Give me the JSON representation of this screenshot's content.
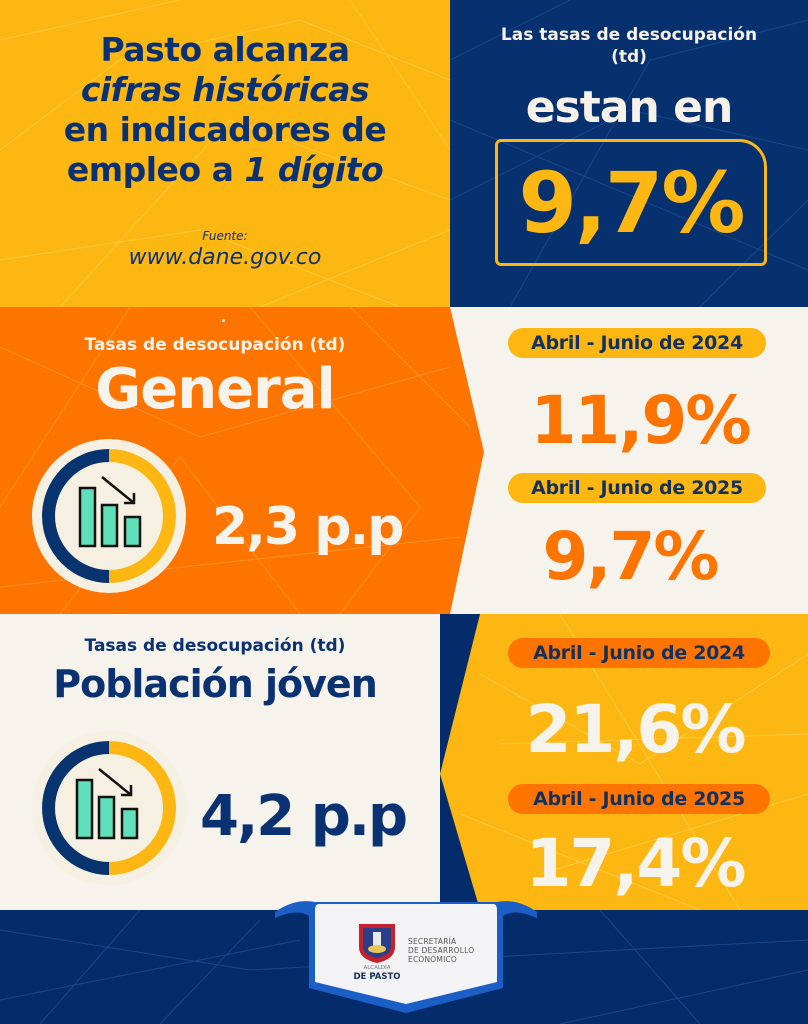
{
  "headline": {
    "line1": "Pasto alcanza",
    "line2": "cifras históricas",
    "line3": "en indicadores de",
    "line4_prefix": "empleo a ",
    "line4_emph": "1 dígito"
  },
  "source": {
    "label": "Fuente:",
    "url": "www.dane.gov.co"
  },
  "summary": {
    "subtitle_line1": "Las tasas de desocupación",
    "subtitle_line2": "(td)",
    "lead": "estan en",
    "value": "9,7%"
  },
  "general": {
    "subtitle": "Tasas de desocupación (td)",
    "title": "General",
    "reduction": "2,3 p.p",
    "periods": [
      {
        "label": "Abril - Junio de 2024",
        "rate": "11,9%"
      },
      {
        "label": "Abril - Junio de 2025",
        "rate": "9,7%"
      }
    ]
  },
  "youth": {
    "subtitle": "Tasas de desocupación (td)",
    "title": "Población jóven",
    "reduction": "4,2 p.p",
    "periods": [
      {
        "label": "Abril - Junio de 2024",
        "rate": "21,6%"
      },
      {
        "label": "Abril - Junio de 2025",
        "rate": "17,4%"
      }
    ]
  },
  "footer": {
    "org_line1": "SECRETARÍA",
    "org_line2": "DE DESARROLLO",
    "org_line3": "ECONÓMICO",
    "alcaldia": "ALCALDÍA",
    "city": "DE PASTO"
  },
  "icons": {
    "chart_down": "bar-chart-down-icon",
    "coat_of_arms": "coat-of-arms-icon"
  },
  "colors": {
    "navy": "#06306e",
    "yellow": "#fdb712",
    "orange": "#fe7400",
    "cream": "#f6f2ec",
    "teal": "#5fe0b8"
  }
}
